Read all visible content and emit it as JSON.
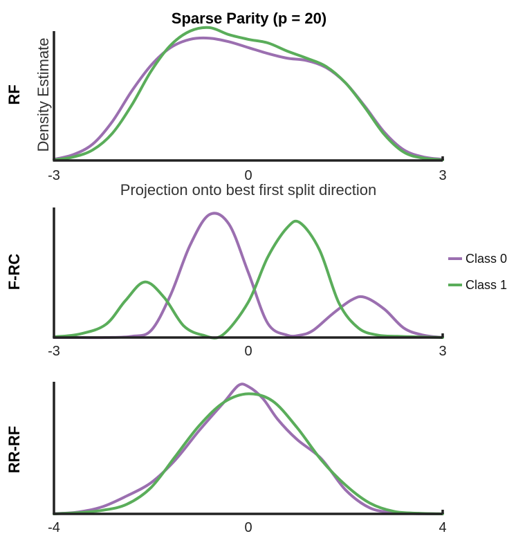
{
  "figure": {
    "title": "Sparse Parity (p = 20)"
  },
  "colors": {
    "class0": "#9b6fb0",
    "class1": "#5aad5a"
  },
  "legend": {
    "placement": "right of middle panel",
    "entries": [
      "Class 0",
      "Class 1"
    ]
  },
  "chart_data": [
    {
      "type": "line",
      "row_label": "RF",
      "ylabel": "Density Estimate",
      "xlabel": "Projection onto best first split direction",
      "xlim": [
        -3,
        3
      ],
      "ylim": [
        0,
        1.1
      ],
      "x_ticks": [
        "-3",
        "0",
        "3"
      ],
      "grid": false,
      "series": [
        {
          "name": "Class 0",
          "color_key": "class0",
          "x": [
            -3,
            -2.7,
            -2.4,
            -2.1,
            -1.8,
            -1.5,
            -1.2,
            -0.9,
            -0.6,
            -0.3,
            0,
            0.3,
            0.6,
            0.9,
            1.2,
            1.5,
            1.8,
            2.1,
            2.4,
            2.7,
            3
          ],
          "y": [
            0.01,
            0.05,
            0.14,
            0.33,
            0.59,
            0.81,
            0.96,
            1.03,
            1.04,
            1.01,
            0.96,
            0.91,
            0.87,
            0.85,
            0.79,
            0.66,
            0.46,
            0.24,
            0.09,
            0.03,
            0.01
          ]
        },
        {
          "name": "Class 1",
          "color_key": "class1",
          "x": [
            -3,
            -2.7,
            -2.4,
            -2.1,
            -1.8,
            -1.5,
            -1.2,
            -0.9,
            -0.6,
            -0.3,
            0,
            0.3,
            0.6,
            0.9,
            1.2,
            1.5,
            1.8,
            2.1,
            2.4,
            2.7,
            3
          ],
          "y": [
            0.005,
            0.03,
            0.09,
            0.23,
            0.47,
            0.76,
            0.98,
            1.1,
            1.13,
            1.07,
            1.03,
            1.0,
            0.93,
            0.87,
            0.8,
            0.66,
            0.45,
            0.22,
            0.07,
            0.02,
            0.005
          ]
        }
      ]
    },
    {
      "type": "line",
      "row_label": "F-RC",
      "xlim": [
        -3,
        3
      ],
      "ylim": [
        0,
        1.1
      ],
      "x_ticks": [
        "-3",
        "0",
        "3"
      ],
      "grid": false,
      "series": [
        {
          "name": "Class 0",
          "color_key": "class0",
          "x": [
            -3,
            -2.6,
            -2.2,
            -1.8,
            -1.5,
            -1.2,
            -0.9,
            -0.6,
            -0.3,
            0,
            0.3,
            0.6,
            0.8,
            1.0,
            1.3,
            1.6,
            1.8,
            2.1,
            2.4,
            2.7,
            3
          ],
          "y": [
            0,
            0,
            0,
            0.01,
            0.06,
            0.36,
            0.78,
            1.04,
            0.96,
            0.55,
            0.12,
            0.02,
            0.02,
            0.06,
            0.2,
            0.32,
            0.34,
            0.24,
            0.08,
            0.02,
            0
          ]
        },
        {
          "name": "Class 1",
          "color_key": "class1",
          "x": [
            -3,
            -2.6,
            -2.2,
            -1.9,
            -1.6,
            -1.3,
            -1.0,
            -0.7,
            -0.4,
            0,
            0.3,
            0.6,
            0.8,
            1.1,
            1.4,
            1.7,
            2.0,
            2.3,
            2.6,
            3
          ],
          "y": [
            0.005,
            0.03,
            0.11,
            0.31,
            0.47,
            0.34,
            0.1,
            0.02,
            0.02,
            0.3,
            0.68,
            0.93,
            0.97,
            0.74,
            0.29,
            0.08,
            0.02,
            0.01,
            0.005,
            0
          ]
        }
      ]
    },
    {
      "type": "line",
      "row_label": "RR-RF",
      "xlim": [
        -4,
        4
      ],
      "ylim": [
        0,
        1.1
      ],
      "x_ticks": [
        "-4",
        "0",
        "4"
      ],
      "grid": false,
      "series": [
        {
          "name": "Class 0",
          "color_key": "class0",
          "x": [
            -4,
            -3.5,
            -3,
            -2.5,
            -2,
            -1.5,
            -1,
            -0.5,
            -0.2,
            0,
            0.3,
            0.6,
            1,
            1.5,
            2,
            2.5,
            3,
            3.5,
            4
          ],
          "y": [
            0.002,
            0.015,
            0.06,
            0.15,
            0.26,
            0.45,
            0.7,
            0.93,
            1.07,
            1.06,
            0.96,
            0.79,
            0.62,
            0.46,
            0.2,
            0.05,
            0.01,
            0.002,
            0
          ]
        },
        {
          "name": "Class 1",
          "color_key": "class1",
          "x": [
            -4,
            -3.5,
            -3,
            -2.5,
            -2,
            -1.5,
            -1,
            -0.5,
            0,
            0.5,
            1,
            1.5,
            2,
            2.5,
            3,
            3.5,
            4
          ],
          "y": [
            0.0,
            0.01,
            0.03,
            0.08,
            0.22,
            0.48,
            0.74,
            0.93,
            1.0,
            0.94,
            0.72,
            0.45,
            0.24,
            0.09,
            0.02,
            0.005,
            0
          ]
        }
      ]
    }
  ]
}
